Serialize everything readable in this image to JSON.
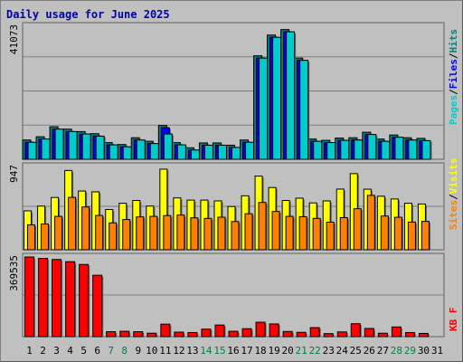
{
  "title": "Daily usage for June 2025",
  "colors": {
    "background": "#c0c0c0",
    "panel": "#c0c0c0",
    "pages": "#00cccc",
    "files": "#0000ff",
    "hits": "#008080",
    "visits": "#ffff00",
    "sites": "#ff8000",
    "kbytes": "#ff0000",
    "weekend_day_label": "#008040",
    "weekday_label": "#000000"
  },
  "chart_data": [
    {
      "type": "bar",
      "panel": "hits-files-pages",
      "ymax_label": "41073",
      "ymax": 41073,
      "legend": [
        {
          "label": "Pages",
          "color": "#00cccc"
        },
        {
          "label": "Files",
          "color": "#0000ff"
        },
        {
          "label": "Hits",
          "color": "#008080"
        }
      ],
      "categories": [
        "1",
        "2",
        "3",
        "4",
        "5",
        "6",
        "7",
        "8",
        "9",
        "10",
        "11",
        "12",
        "13",
        "14",
        "15",
        "16",
        "17",
        "18",
        "19",
        "20",
        "21",
        "22",
        "23",
        "24",
        "25",
        "26",
        "27",
        "28",
        "29",
        "30",
        "31"
      ],
      "series": [
        {
          "name": "Hits",
          "color": "#008080",
          "values": [
            5950,
            6950,
            10050,
            9300,
            8550,
            7900,
            5150,
            4550,
            6650,
            5550,
            10450,
            5150,
            3550,
            5050,
            5050,
            4350,
            5950,
            31950,
            38350,
            40050,
            31250,
            6250,
            5850,
            6550,
            6650,
            8350,
            6250,
            7500,
            6650,
            6450,
            null
          ]
        },
        {
          "name": "Files",
          "color": "#0000ff",
          "values": [
            5250,
            6250,
            9300,
            8550,
            7800,
            7150,
            4450,
            3850,
            5950,
            4850,
            9750,
            4450,
            2850,
            4350,
            4350,
            3650,
            5250,
            31250,
            37650,
            39350,
            30550,
            5550,
            5150,
            5850,
            5950,
            7650,
            5550,
            6800,
            5950,
            5750,
            null
          ]
        },
        {
          "name": "Pages",
          "color": "#00cccc",
          "values": [
            5250,
            6250,
            9300,
            8550,
            7800,
            7150,
            4450,
            3850,
            5950,
            4850,
            7800,
            4450,
            2850,
            4350,
            4350,
            3650,
            5250,
            31250,
            37650,
            39350,
            30550,
            5550,
            5150,
            5850,
            5950,
            7650,
            5550,
            6800,
            5950,
            5750,
            null
          ]
        }
      ]
    },
    {
      "type": "bar",
      "panel": "visits-sites",
      "ymax_label": "947",
      "ymax": 947,
      "legend": [
        {
          "label": "Sites",
          "color": "#ff8000"
        },
        {
          "label": "Visits",
          "color": "#ffff00"
        }
      ],
      "categories": [
        "1",
        "2",
        "3",
        "4",
        "5",
        "6",
        "7",
        "8",
        "9",
        "10",
        "11",
        "12",
        "13",
        "14",
        "15",
        "16",
        "17",
        "18",
        "19",
        "20",
        "21",
        "22",
        "23",
        "24",
        "25",
        "26",
        "27",
        "28",
        "29",
        "30",
        "31"
      ],
      "series": [
        {
          "name": "Visits",
          "color": "#ffff00",
          "values": [
            443,
            497,
            595,
            902,
            668,
            659,
            458,
            529,
            561,
            497,
            917,
            590,
            565,
            565,
            556,
            492,
            614,
            838,
            708,
            561,
            587,
            533,
            556,
            690,
            866,
            689,
            609,
            578,
            529,
            521,
            null
          ]
        },
        {
          "name": "Sites",
          "color": "#ff8000",
          "values": [
            284,
            293,
            380,
            596,
            487,
            390,
            306,
            344,
            374,
            380,
            389,
            395,
            363,
            357,
            371,
            321,
            410,
            538,
            436,
            380,
            376,
            357,
            314,
            366,
            467,
            619,
            384,
            370,
            315,
            323,
            null
          ]
        }
      ]
    },
    {
      "type": "bar",
      "panel": "kbytes",
      "ymax_label": "369535",
      "ymax": 369535,
      "legend": [
        {
          "label": "KB F",
          "color": "#ff0000"
        }
      ],
      "categories": [
        "1",
        "2",
        "3",
        "4",
        "5",
        "6",
        "7",
        "8",
        "9",
        "10",
        "11",
        "12",
        "13",
        "14",
        "15",
        "16",
        "17",
        "18",
        "19",
        "20",
        "21",
        "22",
        "23",
        "24",
        "25",
        "26",
        "27",
        "28",
        "29",
        "30",
        "31"
      ],
      "series": [
        {
          "name": "KB F",
          "color": "#ff0000",
          "values": [
            369535,
            363000,
            358000,
            348000,
            335000,
            285000,
            23000,
            25000,
            23000,
            16000,
            58000,
            21000,
            19000,
            35000,
            54000,
            25000,
            37000,
            67000,
            59000,
            24000,
            20000,
            42000,
            14000,
            22000,
            60000,
            38000,
            16000,
            45000,
            19000,
            15000,
            null
          ]
        }
      ]
    }
  ],
  "x_axis": {
    "labels": [
      "1",
      "2",
      "3",
      "4",
      "5",
      "6",
      "7",
      "8",
      "9",
      "10",
      "11",
      "12",
      "13",
      "14",
      "15",
      "16",
      "17",
      "18",
      "19",
      "20",
      "21",
      "22",
      "23",
      "24",
      "25",
      "26",
      "27",
      "28",
      "29",
      "30",
      "31"
    ],
    "weekend": [
      false,
      false,
      false,
      false,
      false,
      false,
      true,
      true,
      false,
      false,
      false,
      false,
      false,
      true,
      true,
      false,
      false,
      false,
      false,
      false,
      true,
      true,
      false,
      false,
      false,
      false,
      false,
      true,
      true,
      false,
      false
    ]
  }
}
